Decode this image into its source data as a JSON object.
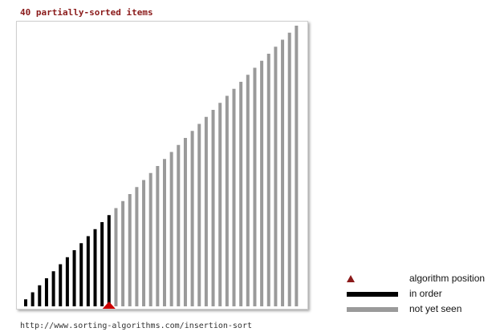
{
  "title": "40 partially-sorted items",
  "source_url": "http://www.sorting-algorithms.com/insertion-sort",
  "legend": {
    "position_label": "algorithm position",
    "in_order_label": "in order",
    "not_seen_label": "not yet seen"
  },
  "colors": {
    "in_order": "#000000",
    "not_yet_seen": "#9a9a9a",
    "position_marker": "#cc0000",
    "title": "#8a1a1a"
  },
  "chart_data": {
    "type": "bar",
    "n_items": 40,
    "values": [
      1,
      2,
      3,
      4,
      5,
      6,
      7,
      8,
      9,
      10,
      11,
      12,
      13,
      14,
      15,
      16,
      17,
      18,
      19,
      20,
      21,
      22,
      23,
      24,
      25,
      26,
      27,
      28,
      29,
      30,
      31,
      32,
      33,
      34,
      35,
      36,
      37,
      38,
      39,
      40
    ],
    "in_order_count": 13,
    "algorithm_position_index": 12,
    "ylim": [
      0,
      40
    ]
  }
}
